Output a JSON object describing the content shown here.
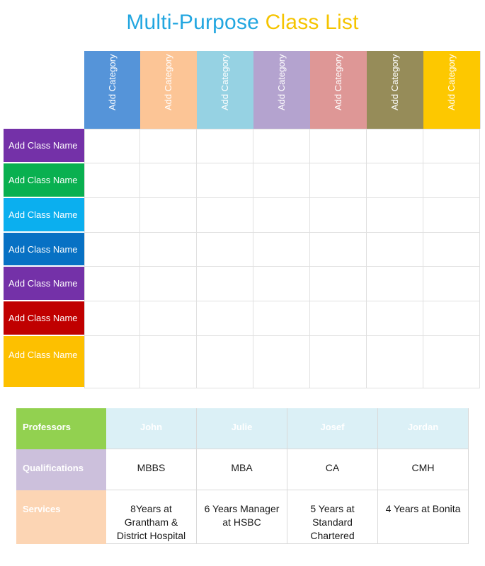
{
  "title": {
    "part1": "Multi-Purpose",
    "part2": "Class List"
  },
  "categories": [
    {
      "label": "Add Category",
      "color": "#5594d9"
    },
    {
      "label": "Add Category",
      "color": "#fcc596"
    },
    {
      "label": "Add Category",
      "color": "#96d2e3"
    },
    {
      "label": "Add Category",
      "color": "#b4a3cf"
    },
    {
      "label": "Add Category",
      "color": "#de9796"
    },
    {
      "label": "Add Category",
      "color": "#968c59"
    },
    {
      "label": "Add Category",
      "color": "#fdc800"
    }
  ],
  "classes": [
    {
      "label": "Add Class Name",
      "color": "#7431a8"
    },
    {
      "label": "Add Class Name",
      "color": "#09b050"
    },
    {
      "label": "Add Class Name",
      "color": "#0bafef"
    },
    {
      "label": "Add Class Name",
      "color": "#0771c4"
    },
    {
      "label": "Add Class Name",
      "color": "#7431a8"
    },
    {
      "label": "Add Class Name",
      "color": "#c00000"
    },
    {
      "label": "Add Class Name",
      "color": "#fdc000"
    }
  ],
  "professors": {
    "headers": {
      "professors": {
        "label": "Professors",
        "color": "#92d150"
      },
      "qualifications": {
        "label": "Qualifications",
        "color": "#ccc0dc"
      },
      "services": {
        "label": "Services",
        "color": "#fcd5b4"
      }
    },
    "name_bg": "#dbf0f6",
    "names": [
      "John",
      "Julie",
      "Josef",
      "Jordan"
    ],
    "qualifications": [
      "MBBS",
      "MBA",
      "CA",
      "CMH"
    ],
    "services": [
      "8Years at Grantham & District Hospital",
      "6 Years Manager at HSBC",
      "5 Years at Standard Chartered",
      "4 Years at Bonita"
    ]
  }
}
